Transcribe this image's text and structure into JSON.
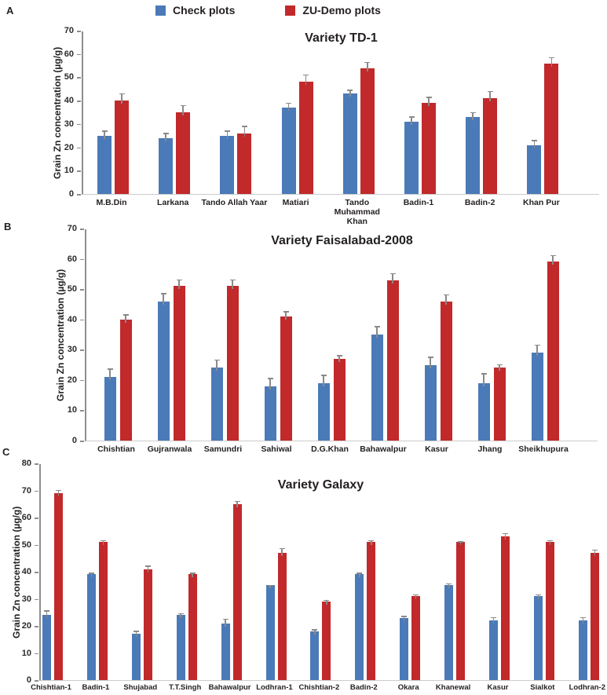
{
  "legend": {
    "items": [
      {
        "label": "Check plots",
        "color": "#4b7ab8"
      },
      {
        "label": "ZU-Demo plots",
        "color": "#c1292b"
      }
    ]
  },
  "colors": {
    "check_blue": "#4b7ab8",
    "zu_demo_red": "#c1292b",
    "error_bar": "#8a8a8a",
    "axis": "#8e8e8e",
    "baseline": "#cccccc",
    "text": "#231f20"
  },
  "chart_data": [
    {
      "type": "bar",
      "panel_label": "A",
      "title": "Variety TD-1",
      "ylabel": "Grain Zn concentration (µg/g)",
      "ylim": [
        0,
        70
      ],
      "yticks": [
        0,
        10,
        20,
        30,
        40,
        50,
        60,
        70
      ],
      "grid": false,
      "legend_position": "top",
      "categories": [
        "M.B.Din",
        "Larkana",
        "Tando Allah Yaar",
        "Matiari",
        "Tando Muhammad Khan",
        "Badin-1",
        "Badin-2",
        "Khan Pur"
      ],
      "series": [
        {
          "name": "Check plots",
          "values": [
            25,
            24,
            25,
            37,
            43,
            31,
            33,
            21
          ],
          "errors": [
            2.5,
            2.5,
            2.5,
            2.5,
            2,
            2.5,
            2.5,
            2.5
          ]
        },
        {
          "name": "ZU-Demo plots",
          "values": [
            40,
            35,
            26,
            48,
            54,
            39,
            41,
            56
          ],
          "errors": [
            3.5,
            3.5,
            3.5,
            3.5,
            3,
            3,
            3.5,
            3
          ]
        }
      ]
    },
    {
      "type": "bar",
      "panel_label": "B",
      "title": "Variety Faisalabad-2008",
      "ylabel": "Grain Zn concentration (µg/g)",
      "ylim": [
        0,
        70
      ],
      "yticks": [
        0,
        10,
        20,
        30,
        40,
        50,
        60,
        70
      ],
      "grid": false,
      "legend_position": "top",
      "categories": [
        "Chishtian",
        "Gujranwala",
        "Samundri",
        "Sahiwal",
        "D.G.Khan",
        "Bahawalpur",
        "Kasur",
        "Jhang",
        "Sheikhupura"
      ],
      "series": [
        {
          "name": "Check plots",
          "values": [
            21,
            46,
            24,
            18,
            19,
            35,
            25,
            19,
            29
          ],
          "errors": [
            3,
            3,
            3,
            3,
            3,
            3,
            3,
            3.5,
            3
          ]
        },
        {
          "name": "ZU-Demo plots",
          "values": [
            40,
            51,
            51,
            41,
            27,
            53,
            46,
            24,
            59
          ],
          "errors": [
            2,
            2.5,
            2.5,
            2,
            1.5,
            2.5,
            2.5,
            1.5,
            2.5
          ]
        }
      ]
    },
    {
      "type": "bar",
      "panel_label": "C",
      "title": "Variety Galaxy",
      "ylabel": "Grain Zn concentration (µg/g)",
      "ylim": [
        0,
        80
      ],
      "yticks": [
        0,
        10,
        20,
        30,
        40,
        50,
        60,
        70,
        80
      ],
      "grid": false,
      "legend_position": "top",
      "categories": [
        "Chishtian-1",
        "Badin-1",
        "Shujabad",
        "T.T.Singh",
        "Bahawalpur",
        "Lodhran-1",
        "Chishtian-2",
        "Badin-2",
        "Okara",
        "Khanewal",
        "Kasur",
        "Sialkot",
        "Lodhran-2"
      ],
      "series": [
        {
          "name": "Check plots",
          "values": [
            24,
            39,
            17,
            24,
            21,
            35,
            18,
            39,
            23,
            35,
            22,
            31,
            22
          ],
          "errors": [
            2,
            1,
            1.5,
            1,
            2,
            0.5,
            1,
            1,
            1,
            1,
            1.5,
            1,
            1.5
          ]
        },
        {
          "name": "ZU-Demo plots",
          "values": [
            69,
            51,
            41,
            39,
            65,
            47,
            29,
            51,
            31,
            51,
            53,
            51,
            47
          ],
          "errors": [
            1.5,
            1,
            1.5,
            1,
            1.5,
            2,
            1,
            1,
            1,
            0.5,
            1.5,
            1,
            1.5
          ]
        }
      ]
    }
  ]
}
